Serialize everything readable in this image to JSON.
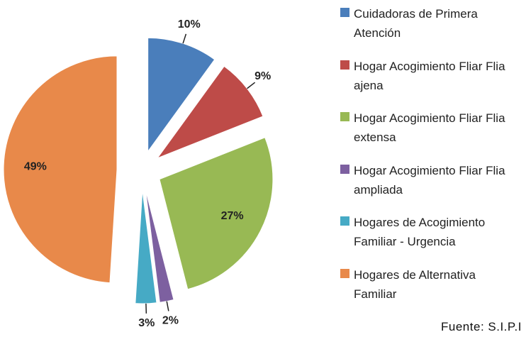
{
  "chart_data": {
    "type": "pie",
    "categories": [
      "Cuidadoras de Primera Atención",
      "Hogar Acogimiento Fliar Flia ajena",
      "Hogar Acogimiento Fliar Flia extensa",
      "Hogar Acogimiento Fliar Flia ampliada",
      "Hogares de Acogimiento Familiar - Urgencia",
      "Hogares de Alternativa Familiar"
    ],
    "values": [
      10,
      9,
      27,
      2,
      3,
      49
    ],
    "value_labels": [
      "10%",
      "9%",
      "27%",
      "2%",
      "3%",
      "49%"
    ],
    "colors": [
      "#4a7ebb",
      "#be4b48",
      "#98b954",
      "#7d60a0",
      "#46aac5",
      "#e8894a"
    ],
    "legend": "right",
    "source": "Fuente: S.I.P.I"
  }
}
